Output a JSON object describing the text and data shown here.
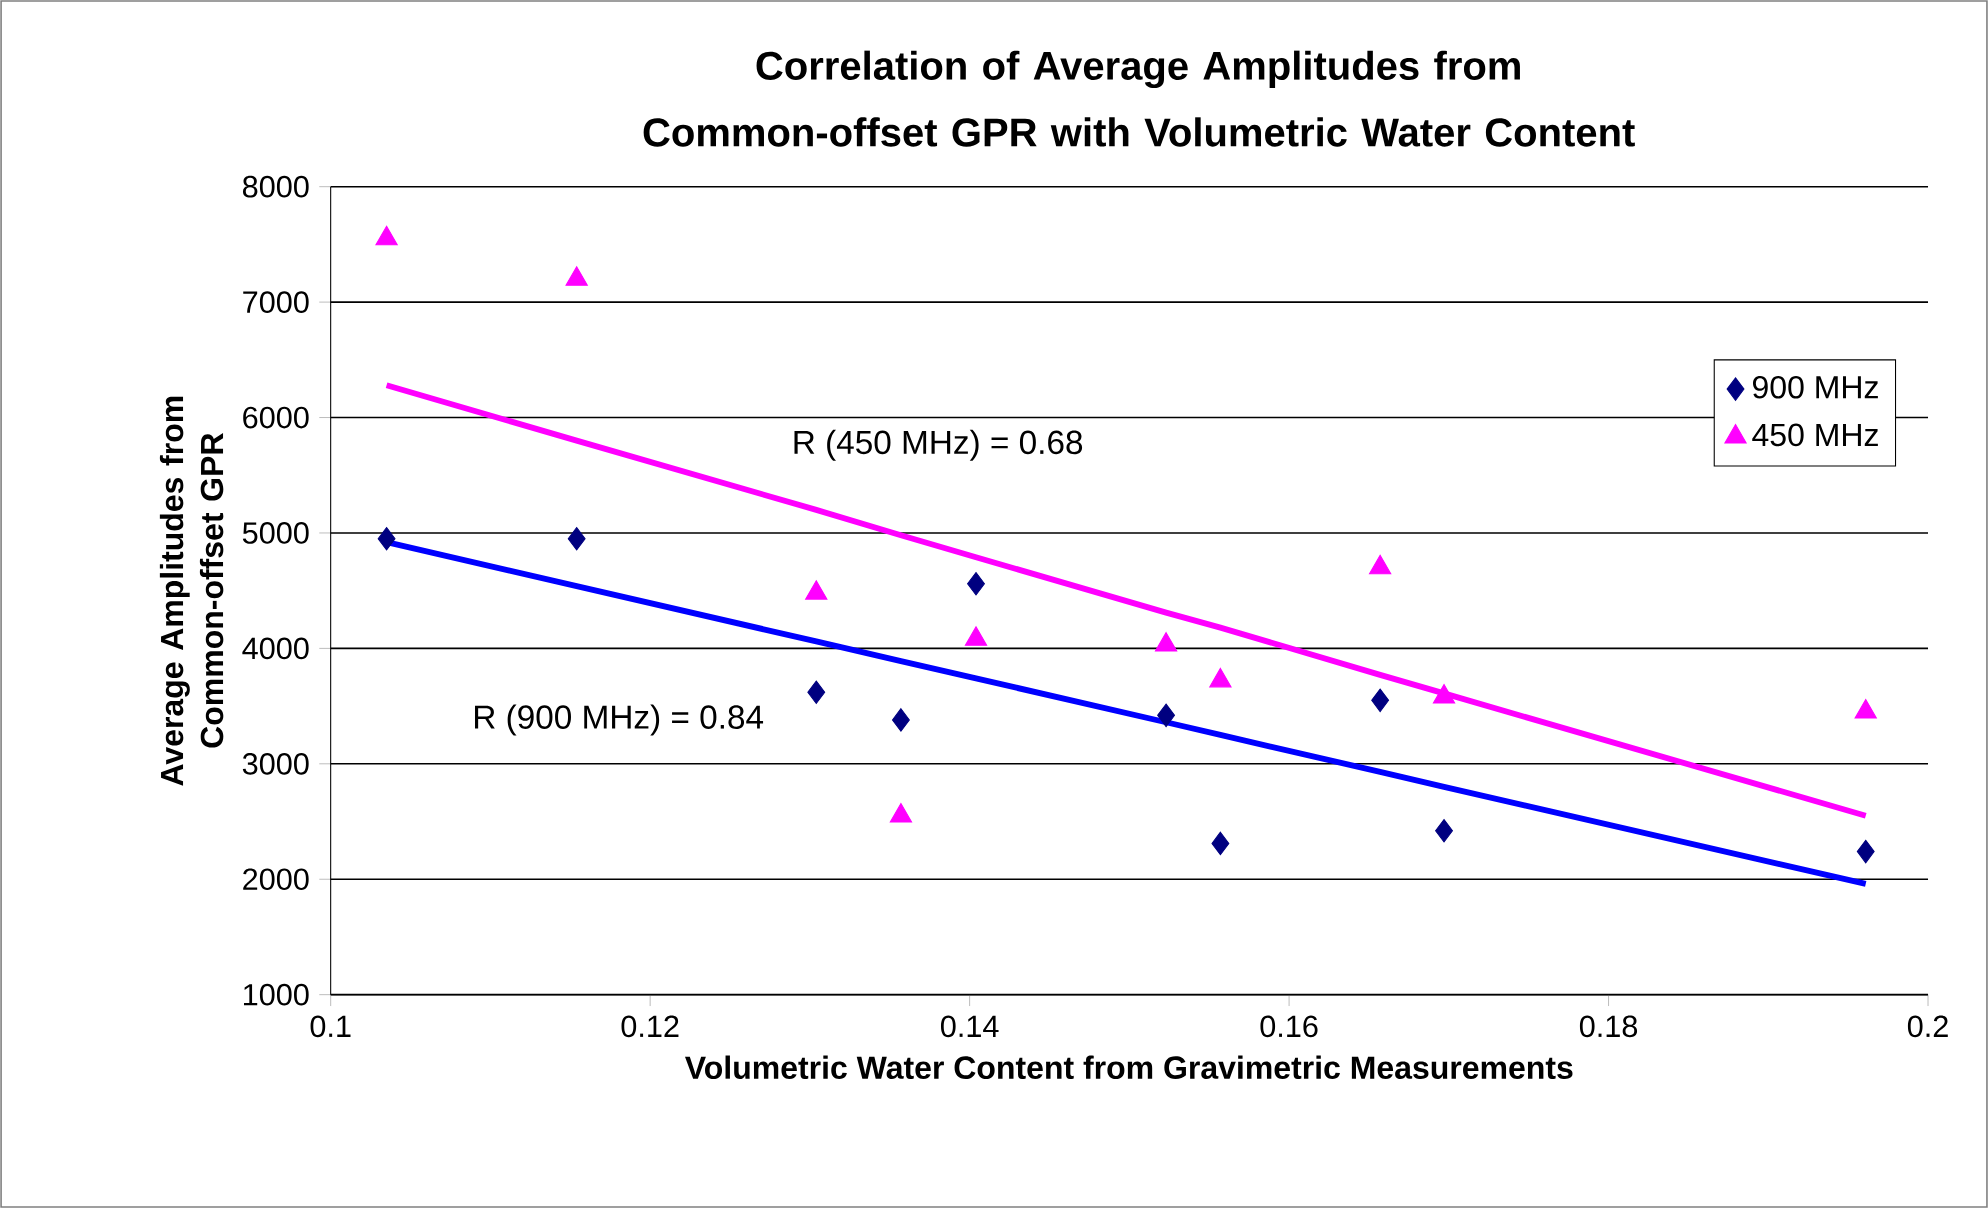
{
  "chart_data": {
    "type": "scatter",
    "title": "Correlation of Average Amplitudes from Common-offset GPR with Volumetric Water Content",
    "xlabel": "Volumetric Water Content from Gravimetric Measurements",
    "ylabel": "Average Amplitudes from Common-offset GPR",
    "x": [
      0.1035,
      0.1154,
      0.1304,
      0.1357,
      0.1404,
      0.1523,
      0.1557,
      0.1657,
      0.1697,
      0.1961
    ],
    "series": [
      {
        "name": "900 MHz",
        "color": "#000080",
        "marker": "diamond",
        "values": [
          4950,
          4950,
          3620,
          3380,
          4560,
          3420,
          2310,
          3550,
          2420,
          2240
        ]
      },
      {
        "name": "450 MHz",
        "color": "#ff00ff",
        "marker": "triangle",
        "values": [
          7550,
          7200,
          4480,
          2550,
          4080,
          4030,
          3720,
          4700,
          3580,
          3450
        ]
      },
      {
        "type": "line",
        "color": "#0000ff",
        "values": [
          4920,
          4540,
          4060,
          3890,
          3740,
          3360,
          3250,
          2930,
          2800,
          1960
        ]
      },
      {
        "type": "line",
        "color": "#ff00ff",
        "values": [
          6280,
          5800,
          5200,
          4980,
          4790,
          4310,
          4180,
          3770,
          3610,
          2550
        ]
      }
    ],
    "annotations": [
      "R (450 MHz) = 0.68",
      "R (900 MHz) = 0.84"
    ],
    "xlim": [
      0.1,
      0.2
    ],
    "xticks": [
      0.1,
      0.12,
      0.14,
      0.16,
      0.18,
      0.2
    ],
    "ylim": [
      1000,
      8000
    ],
    "yticks": [
      1000,
      2000,
      3000,
      4000,
      5000,
      6000,
      7000,
      8000
    ],
    "grid": "y",
    "legend": "right"
  }
}
